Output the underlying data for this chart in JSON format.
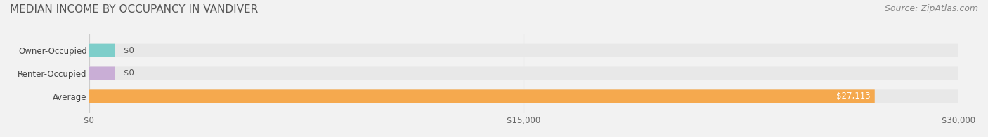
{
  "title": "MEDIAN INCOME BY OCCUPANCY IN VANDIVER",
  "source": "Source: ZipAtlas.com",
  "categories": [
    "Owner-Occupied",
    "Renter-Occupied",
    "Average"
  ],
  "values": [
    0,
    0,
    27113
  ],
  "bar_colors": [
    "#7ececa",
    "#c9aed6",
    "#f5a94e"
  ],
  "label_colors": [
    "#7ececa",
    "#c9aed6",
    "#f5a94e"
  ],
  "bar_labels": [
    "$0",
    "$0",
    "$27,113"
  ],
  "xlim": [
    0,
    30000
  ],
  "xticks": [
    0,
    15000,
    30000
  ],
  "xtick_labels": [
    "$0",
    "$15,000",
    "$30,000"
  ],
  "bg_color": "#f2f2f2",
  "bar_bg_color": "#e8e8e8",
  "title_fontsize": 11,
  "source_fontsize": 9,
  "bar_height": 0.55,
  "figsize": [
    14.06,
    1.96
  ]
}
